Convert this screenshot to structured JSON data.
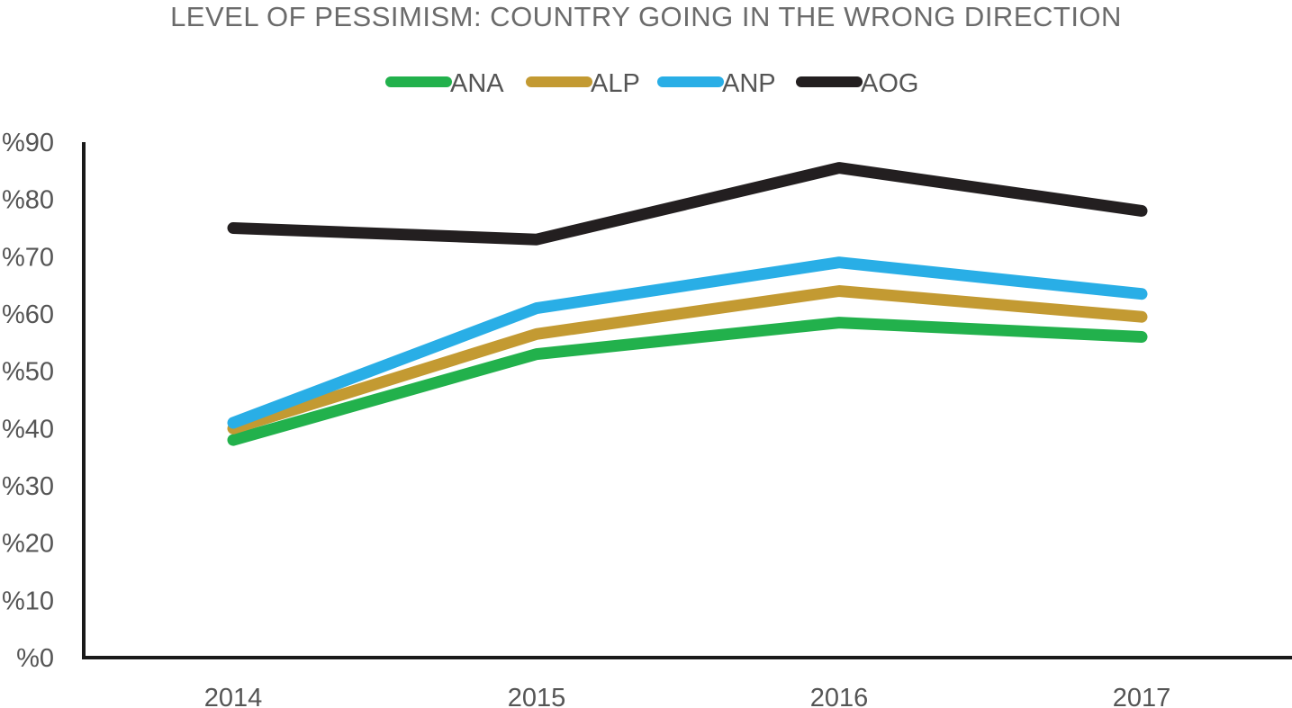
{
  "chart_data": {
    "type": "line",
    "title": "LEVEL OF PESSIMISM: COUNTRY GOING IN THE WRONG DIRECTION",
    "xlabel": "",
    "ylabel": "",
    "categories": [
      "2014",
      "2015",
      "2016",
      "2017"
    ],
    "ylim": [
      0,
      90
    ],
    "yticks": [
      0,
      10,
      20,
      30,
      40,
      50,
      60,
      70,
      80,
      90
    ],
    "ytick_labels": [
      "%0",
      "%10",
      "%20",
      "%30",
      "%40",
      "%50",
      "%60",
      "%70",
      "%80",
      "%90"
    ],
    "grid": false,
    "legend_position": "top",
    "series": [
      {
        "name": "ANA",
        "color": "#22b14c",
        "values": [
          38,
          53,
          58.5,
          56
        ]
      },
      {
        "name": "ALP",
        "color": "#c39a32",
        "values": [
          40,
          56.5,
          64,
          59.5
        ]
      },
      {
        "name": "ANP",
        "color": "#29aee6",
        "values": [
          41,
          61,
          69,
          63.5
        ]
      },
      {
        "name": "AOG",
        "color": "#231f20",
        "values": [
          75,
          73,
          85.5,
          78
        ]
      }
    ]
  }
}
